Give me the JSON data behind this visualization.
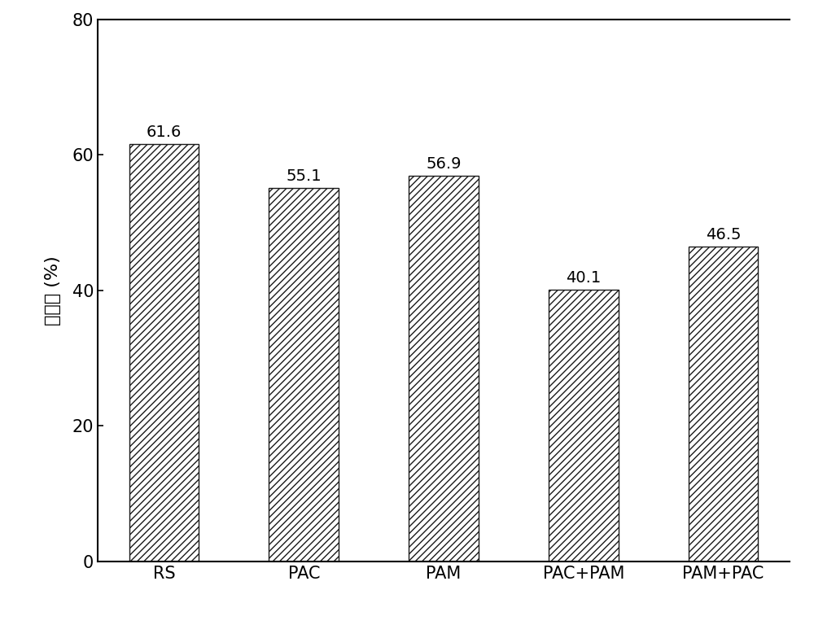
{
  "categories": [
    "RS",
    "PAC",
    "PAM",
    "PAC+PAM",
    "PAM+PAC"
  ],
  "values": [
    61.6,
    55.1,
    56.9,
    40.1,
    46.5
  ],
  "ylabel": "含水率 (%)",
  "ylim": [
    0,
    80
  ],
  "yticks": [
    0,
    20,
    40,
    60,
    80
  ],
  "bar_color": "#ffffff",
  "bar_edgecolor": "#1a1a1a",
  "hatch": "////",
  "bar_width": 0.5,
  "label_fontsize": 16,
  "tick_fontsize": 15,
  "value_fontsize": 14,
  "background_color": "#ffffff",
  "spine_linewidth": 1.5
}
